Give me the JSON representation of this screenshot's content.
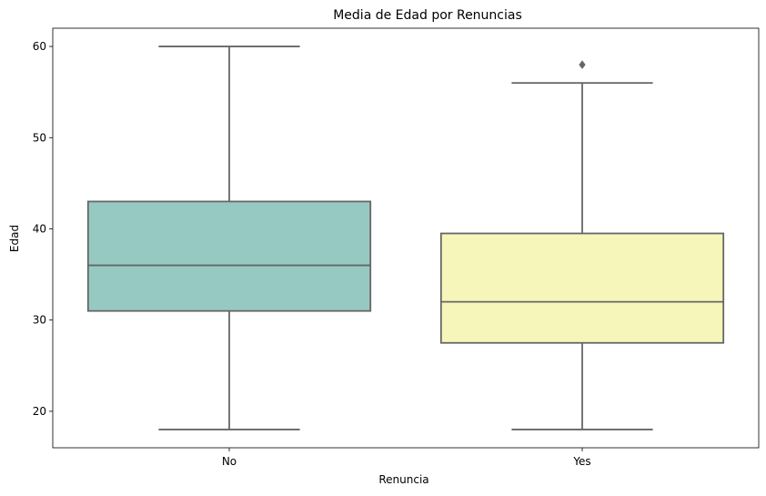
{
  "chart_data": {
    "type": "box",
    "title": "Media de Edad por Renuncias",
    "xlabel": "Renuncia",
    "ylabel": "Edad",
    "ylim": [
      16,
      62
    ],
    "yticks": [
      20,
      30,
      40,
      50,
      60
    ],
    "categories": [
      "No",
      "Yes"
    ],
    "boxes": [
      {
        "category": "No",
        "whisker_low": 18,
        "q1": 31,
        "median": 36,
        "q3": 43,
        "whisker_high": 60,
        "outliers": [],
        "color": "#96c9c1"
      },
      {
        "category": "Yes",
        "whisker_low": 18,
        "q1": 27.5,
        "median": 32,
        "q3": 39.5,
        "whisker_high": 56,
        "outliers": [
          58
        ],
        "color": "#f6f6bb"
      }
    ],
    "line_color": "#666666",
    "grid": false
  }
}
